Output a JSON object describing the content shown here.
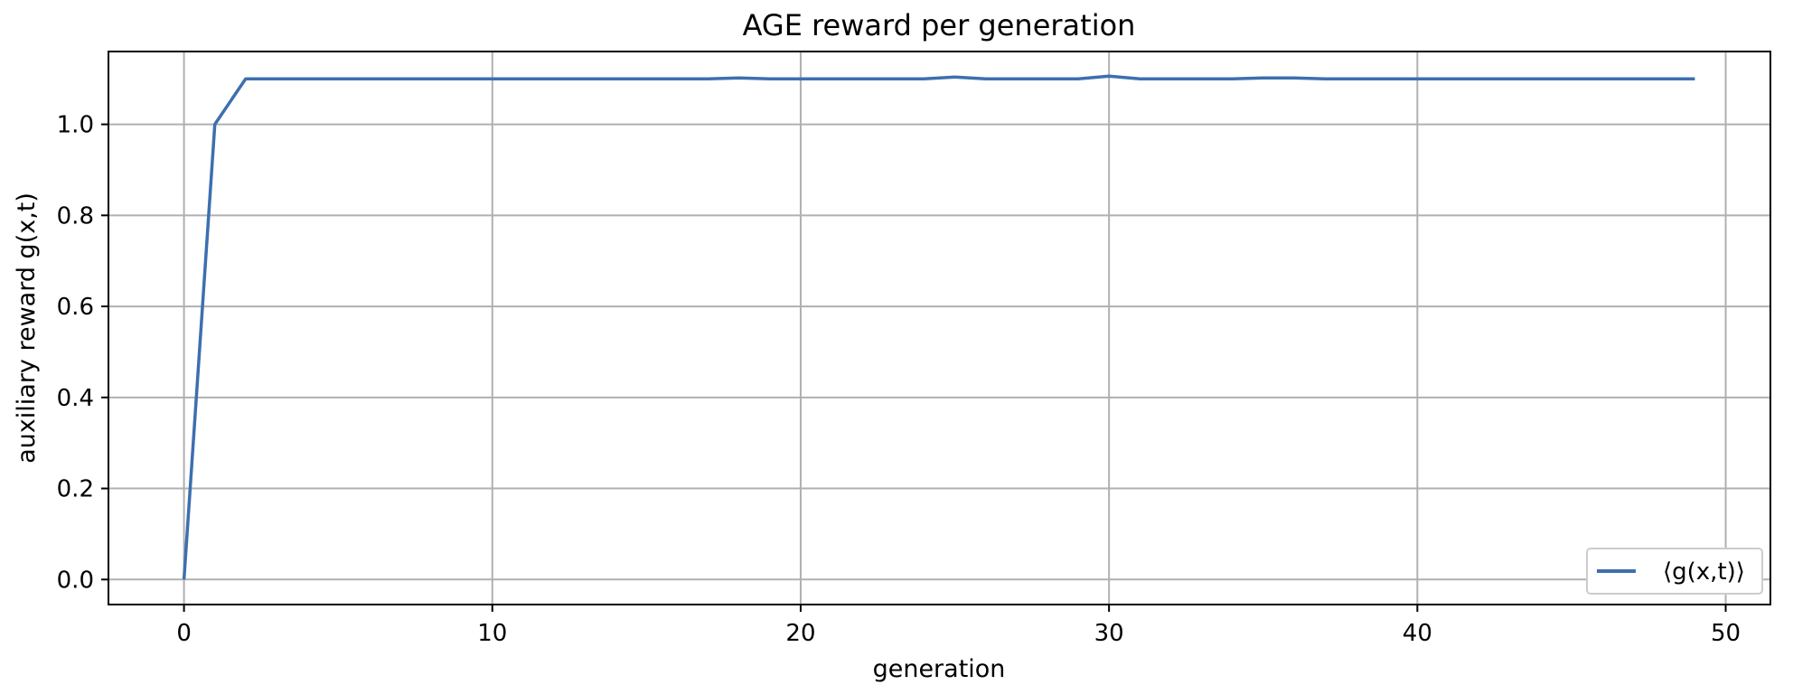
{
  "chart_data": {
    "type": "line",
    "title": "AGE reward per generation",
    "xlabel": "generation",
    "ylabel": "auxiliary reward g(x,t)",
    "xlim": [
      -2.45,
      51.45
    ],
    "ylim": [
      -0.055,
      1.16
    ],
    "xticks": [
      0,
      10,
      20,
      30,
      40,
      50
    ],
    "yticks": [
      0.0,
      0.2,
      0.4,
      0.6,
      0.8,
      1.0
    ],
    "xtick_labels": [
      "0",
      "10",
      "20",
      "30",
      "40",
      "50"
    ],
    "ytick_labels": [
      "0.0",
      "0.2",
      "0.4",
      "0.6",
      "0.8",
      "1.0"
    ],
    "grid": true,
    "legend_position": "lower-right",
    "series": [
      {
        "name": "⟨g(x,t)⟩",
        "color": "#3d6fb0",
        "x": [
          0,
          1,
          2,
          3,
          4,
          5,
          6,
          7,
          8,
          9,
          10,
          11,
          12,
          13,
          14,
          15,
          16,
          17,
          18,
          19,
          20,
          21,
          22,
          23,
          24,
          25,
          26,
          27,
          28,
          29,
          30,
          31,
          32,
          33,
          34,
          35,
          36,
          37,
          38,
          39,
          40,
          41,
          42,
          43,
          44,
          45,
          46,
          47,
          48,
          49
        ],
        "y": [
          0.0,
          1.0,
          1.1,
          1.1,
          1.1,
          1.1,
          1.1,
          1.1,
          1.1,
          1.1,
          1.1,
          1.1,
          1.1,
          1.1,
          1.1,
          1.1,
          1.1,
          1.1,
          1.102,
          1.1,
          1.1,
          1.1,
          1.1,
          1.1,
          1.1,
          1.104,
          1.1,
          1.1,
          1.1,
          1.1,
          1.106,
          1.1,
          1.1,
          1.1,
          1.1,
          1.102,
          1.102,
          1.1,
          1.1,
          1.1,
          1.1,
          1.1,
          1.1,
          1.1,
          1.1,
          1.1,
          1.1,
          1.1,
          1.1,
          1.1
        ]
      }
    ]
  }
}
